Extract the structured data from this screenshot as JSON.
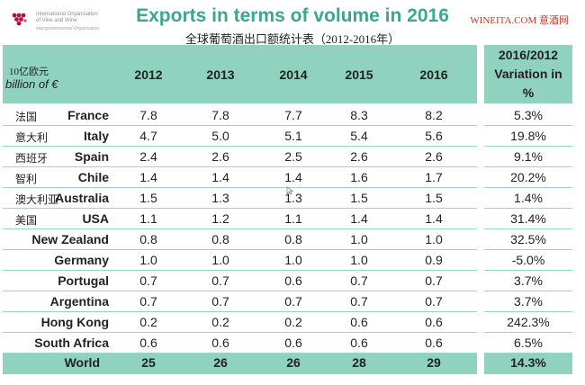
{
  "logo": {
    "line1": "International Organisation",
    "line2": "of Vine and Wine",
    "line3": "Intergovernmental Organisation",
    "mark_color": "#b5123a"
  },
  "title": "Exports in terms of volume in 2016",
  "subtitle": "全球葡萄酒出口额统计表（2012-2016年）",
  "watermark": "WINEITA.COM 意酒网",
  "header": {
    "unit_cn": "10亿欧元",
    "unit_en": "billion of €",
    "years": [
      "2012",
      "2013",
      "2014",
      "2015",
      "2016"
    ],
    "variation_lines": [
      "2016/2012",
      "Variation in",
      "%"
    ]
  },
  "rows": [
    {
      "cn": "法国",
      "country": "France",
      "values": [
        "7.8",
        "7.8",
        "7.7",
        "8.3",
        "8.2"
      ],
      "variation": "5.3%"
    },
    {
      "cn": "意大利",
      "country": "Italy",
      "values": [
        "4.7",
        "5.0",
        "5.1",
        "5.4",
        "5.6"
      ],
      "variation": "19.8%"
    },
    {
      "cn": "西班牙",
      "country": "Spain",
      "values": [
        "2.4",
        "2.6",
        "2.5",
        "2.6",
        "2.6"
      ],
      "variation": "9.1%"
    },
    {
      "cn": "智利",
      "country": "Chile",
      "values": [
        "1.4",
        "1.4",
        "1.4",
        "1.6",
        "1.7"
      ],
      "variation": "20.2%"
    },
    {
      "cn": "澳大利亚",
      "country": "Australia",
      "values": [
        "1.5",
        "1.3",
        "1.3",
        "1.5",
        "1.5"
      ],
      "variation": "1.4%"
    },
    {
      "cn": "美国",
      "country": "USA",
      "values": [
        "1.1",
        "1.2",
        "1.1",
        "1.4",
        "1.4"
      ],
      "variation": "31.4%"
    },
    {
      "cn": "",
      "country": "New Zealand",
      "values": [
        "0.8",
        "0.8",
        "0.8",
        "1.0",
        "1.0"
      ],
      "variation": "32.5%"
    },
    {
      "cn": "",
      "country": "Germany",
      "values": [
        "1.0",
        "1.0",
        "1.0",
        "1.0",
        "0.9"
      ],
      "variation": "-5.0%"
    },
    {
      "cn": "",
      "country": "Portugal",
      "values": [
        "0.7",
        "0.7",
        "0.6",
        "0.7",
        "0.7"
      ],
      "variation": "3.7%"
    },
    {
      "cn": "",
      "country": "Argentina",
      "values": [
        "0.7",
        "0.7",
        "0.7",
        "0.7",
        "0.7"
      ],
      "variation": "3.7%"
    },
    {
      "cn": "",
      "country": "Hong Kong",
      "values": [
        "0.2",
        "0.2",
        "0.2",
        "0.6",
        "0.6"
      ],
      "variation": "242.3%"
    },
    {
      "cn": "",
      "country": "South Africa",
      "values": [
        "0.6",
        "0.6",
        "0.6",
        "0.6",
        "0.6"
      ],
      "variation": "6.5%"
    }
  ],
  "world": {
    "country": "World",
    "values": [
      "25",
      "26",
      "26",
      "28",
      "29"
    ],
    "variation": "14.3%"
  },
  "colors": {
    "accent": "#3aa88f",
    "header_bg": "#8fd3bf",
    "watermark": "#c0392b"
  }
}
